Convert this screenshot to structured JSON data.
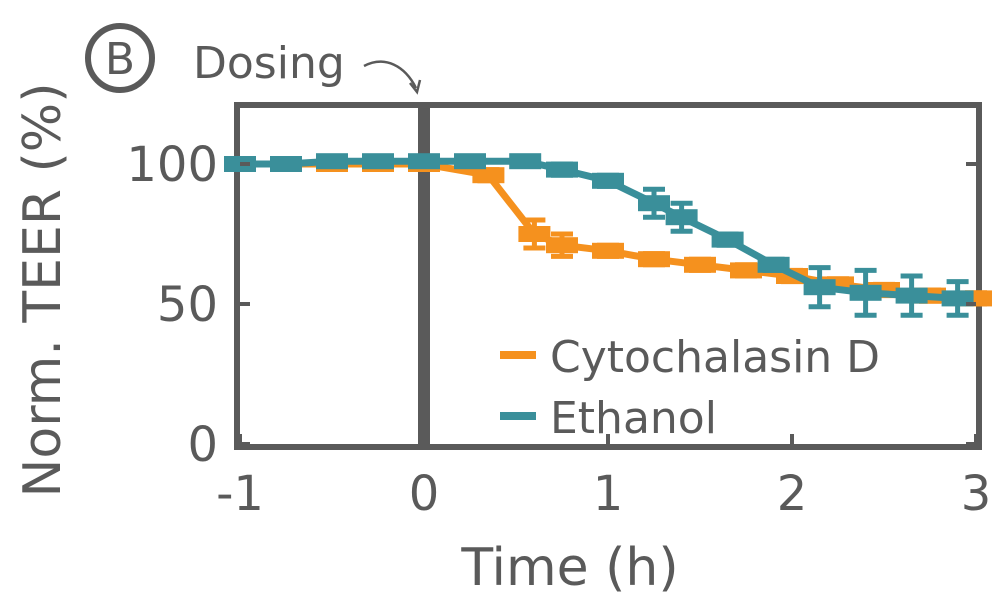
{
  "panel_label": "B",
  "annotation": "Dosing",
  "colors": {
    "axis": "#5a5a5a",
    "cytochalasin": "#f5911e",
    "ethanol": "#3a8f9a"
  },
  "chart_data": {
    "type": "line",
    "xlabel": "Time (h)",
    "ylabel": "Norm. TEER (%)",
    "xlim": [
      -1,
      3
    ],
    "ylim": [
      0,
      120
    ],
    "xticks": [
      -1,
      0,
      1,
      2,
      3
    ],
    "yticks": [
      0,
      50,
      100
    ],
    "xtick_labels": [
      "-1",
      "0",
      "1",
      "2",
      "3"
    ],
    "ytick_labels": [
      "0",
      "50",
      "100"
    ],
    "dosing_time": 0,
    "legend_position": "bottom-right",
    "series": [
      {
        "name": "Cytochalasin D",
        "color": "#f5911e",
        "x": [
          -1,
          -0.75,
          -0.5,
          -0.25,
          0,
          0.35,
          0.6,
          0.75,
          1.0,
          1.25,
          1.5,
          1.75,
          2.0,
          2.25,
          2.5,
          2.75,
          3.0
        ],
        "y": [
          100,
          100,
          100,
          100,
          100,
          96,
          75,
          71,
          69,
          66,
          64,
          62,
          60,
          57,
          55,
          53,
          52
        ],
        "err": [
          0,
          0,
          0,
          0,
          1,
          2,
          5,
          4,
          2,
          2,
          2,
          2,
          2,
          2,
          2,
          2,
          2
        ]
      },
      {
        "name": "Ethanol",
        "color": "#3a8f9a",
        "x": [
          -1,
          -0.75,
          -0.5,
          -0.25,
          0,
          0.25,
          0.55,
          0.75,
          1.0,
          1.25,
          1.4,
          1.65,
          1.9,
          2.15,
          2.4,
          2.65,
          2.9
        ],
        "y": [
          100,
          100,
          101,
          101,
          101,
          101,
          101,
          98,
          94,
          86,
          81,
          73,
          64,
          56,
          54,
          53,
          52
        ],
        "err": [
          0,
          1,
          1,
          1,
          1,
          1,
          1,
          2,
          2,
          5,
          5,
          2,
          2,
          7,
          8,
          7,
          6
        ]
      }
    ]
  }
}
